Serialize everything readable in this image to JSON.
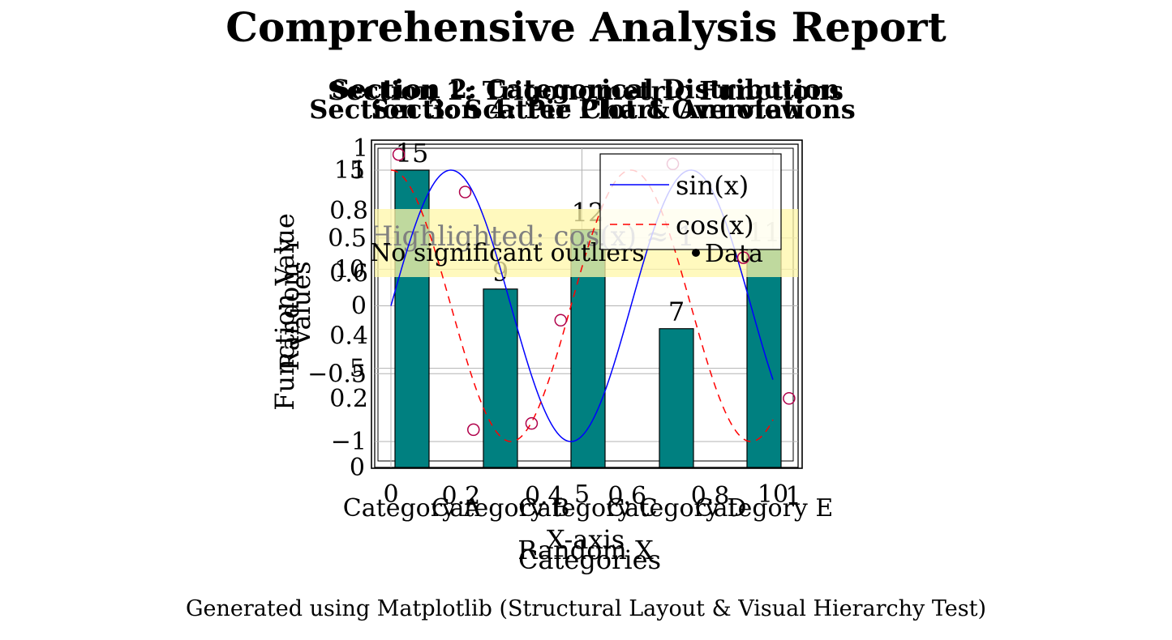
{
  "report": {
    "title": "Comprehensive Analysis Report",
    "footer": "Generated using Matplotlib (Structural Layout & Visual Hierarchy Test)"
  },
  "colors": {
    "bar": "#008080",
    "sin": "#0000ff",
    "cos": "#ff0000",
    "scatter": "#b0004a",
    "highlight": "#fff7a8",
    "grid": "#b3b3b3"
  },
  "chart_data": [
    {
      "type": "line",
      "title": "Section 1: Trigonometric Functions",
      "xlabel": "X-axis",
      "ylabel": "Function Value",
      "xlim": [
        0,
        10
      ],
      "ylim": [
        -1.1,
        1.1
      ],
      "xticks": [
        "0",
        "5",
        "10"
      ],
      "yticks": [
        "−1",
        "−0.5",
        "0",
        "0.5",
        "1"
      ],
      "grid": true,
      "legend": "top-right",
      "series": [
        {
          "name": "sin(x)",
          "function": "sin",
          "style": "solid",
          "color": "#0000ff"
        },
        {
          "name": "cos(x)",
          "function": "cos",
          "style": "dashed",
          "color": "#ff0000"
        }
      ],
      "annotations": [
        {
          "text": "Highlighted: cos(x) ≈ 1",
          "y_range": [
            0.6,
            0.9
          ]
        }
      ]
    },
    {
      "type": "bar",
      "title": "Section 2: Categorical Distribution",
      "xlabel": "Categories",
      "ylabel": "Values",
      "categories": [
        "Category A",
        "Category B",
        "Category C",
        "Category D",
        "Category E"
      ],
      "values": [
        15,
        9,
        12,
        7,
        11
      ],
      "data_labels": [
        "15",
        "9",
        "12",
        "7",
        "11"
      ],
      "ylim": [
        0,
        15.5
      ],
      "yticks": [
        "0",
        "5",
        "10",
        "15"
      ],
      "grid": true
    },
    {
      "type": "scatter",
      "title": "Section 3: Scatter Plot & Annotations",
      "xlabel": "Random X",
      "ylabel": "Random Y",
      "xlim": [
        0,
        1
      ],
      "ylim": [
        0,
        1
      ],
      "xticks": [
        "0.2",
        "0.4",
        "0.6",
        "0.8",
        "1"
      ],
      "yticks": [
        "0.2",
        "0.4",
        "0.6",
        "0.8",
        "1"
      ],
      "x": [
        0.05,
        0.21,
        0.23,
        0.37,
        0.44,
        0.71,
        0.88,
        0.99
      ],
      "y": [
        0.98,
        0.86,
        0.1,
        0.12,
        0.45,
        0.95,
        0.65,
        0.2
      ],
      "legend": "Data",
      "annotation": "No significant outliers"
    },
    {
      "type": "pie",
      "title": "Section 4: Pie Chart Overview"
    }
  ]
}
